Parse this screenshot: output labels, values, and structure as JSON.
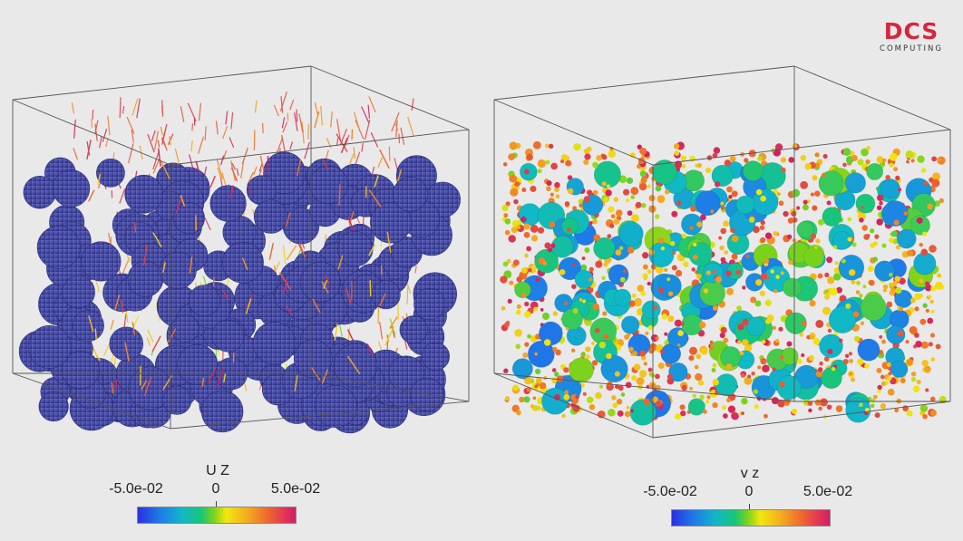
{
  "logo": {
    "main": "DCS",
    "sub": "COMPUTING"
  },
  "left_panel": {
    "colorbar": {
      "title": "U Z",
      "min_label": "-5.0e-02",
      "mid_label": "0",
      "max_label": "5.0e-02"
    }
  },
  "right_panel": {
    "colorbar": {
      "title": "v z",
      "min_label": "-5.0e-02",
      "mid_label": "0",
      "max_label": "5.0e-02"
    }
  },
  "colors": {
    "background": "#e9e9e9",
    "particles": "#3c3f9e",
    "logo_red": "#d6263d"
  }
}
